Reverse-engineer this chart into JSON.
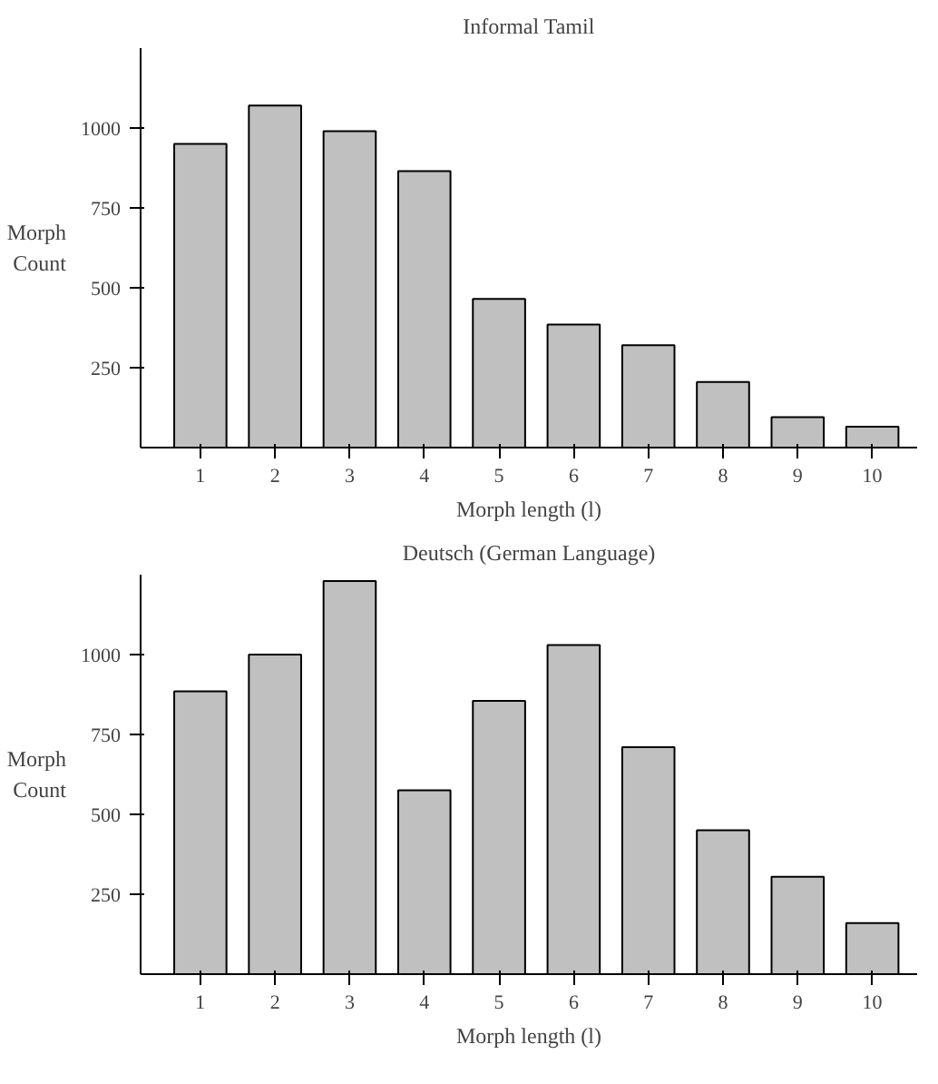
{
  "chart_data": [
    {
      "type": "bar",
      "title": "Informal Tamil",
      "xlabel": "Morph length (l)",
      "ylabel": "Morph Count",
      "categories": [
        "1",
        "2",
        "3",
        "4",
        "5",
        "6",
        "7",
        "8",
        "9",
        "10"
      ],
      "color": "#c0c0c0",
      "values": [
        950,
        1070,
        990,
        865,
        465,
        385,
        320,
        205,
        95,
        65
      ],
      "ylim": [
        0,
        1250
      ],
      "yticks": [
        250,
        500,
        750,
        1000
      ],
      "grid": false
    },
    {
      "type": "bar",
      "title": "Deutsch (German Language)",
      "xlabel": "Morph length (l)",
      "ylabel": "Morph Count",
      "categories": [
        "1",
        "2",
        "3",
        "4",
        "5",
        "6",
        "7",
        "8",
        "9",
        "10"
      ],
      "color": "#c0c0c0",
      "values": [
        885,
        1000,
        1230,
        575,
        855,
        1030,
        710,
        450,
        305,
        160
      ],
      "ylim": [
        0,
        1250
      ],
      "yticks": [
        250,
        500,
        750,
        1000
      ],
      "grid": false
    }
  ]
}
